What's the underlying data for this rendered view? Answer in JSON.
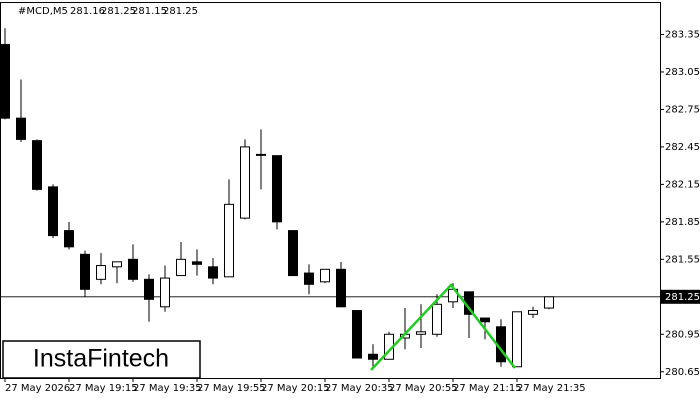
{
  "chart_data": {
    "type": "candlestick",
    "title": "#MCD,M5",
    "header_values": [
      281.16,
      281.25,
      281.15,
      281.25
    ],
    "watermark": "InstaFintech",
    "categories": [
      "27 May 2026",
      null,
      null,
      null,
      "27 May 19:15",
      null,
      null,
      null,
      "27 May 19:35",
      null,
      null,
      null,
      "27 May 19:55",
      null,
      null,
      null,
      "27 May 20:15",
      null,
      null,
      null,
      "27 May 20:35",
      null,
      null,
      null,
      "27 May 20:55",
      null,
      null,
      null,
      "27 May 21:15",
      null,
      null,
      null,
      "27 May 21:35",
      null,
      null
    ],
    "open": [
      283.27,
      282.68,
      282.5,
      282.13,
      281.78,
      281.59,
      281.39,
      281.49,
      281.55,
      281.39,
      281.17,
      281.42,
      281.53,
      281.49,
      281.41,
      281.88,
      282.39,
      282.38,
      281.78,
      281.44,
      281.37,
      281.47,
      281.14,
      280.79,
      280.75,
      280.92,
      280.95,
      280.95,
      281.21,
      281.29,
      281.08,
      281.01,
      280.69,
      281.11,
      281.16
    ],
    "high": [
      283.4,
      282.99,
      282.51,
      282.15,
      281.85,
      281.62,
      281.6,
      281.53,
      281.67,
      281.43,
      281.5,
      281.69,
      281.63,
      281.56,
      282.19,
      282.51,
      282.59,
      282.38,
      281.78,
      281.51,
      281.47,
      281.53,
      281.14,
      280.87,
      280.97,
      281.16,
      281.19,
      281.27,
      281.36,
      281.29,
      281.08,
      281.07,
      281.13,
      281.17,
      281.25
    ],
    "low": [
      282.67,
      282.49,
      282.1,
      281.72,
      281.63,
      281.25,
      281.35,
      281.36,
      281.37,
      281.05,
      281.13,
      281.42,
      281.42,
      281.35,
      281.41,
      281.87,
      282.11,
      281.79,
      281.42,
      281.27,
      281.36,
      281.17,
      280.76,
      280.67,
      280.75,
      280.83,
      280.84,
      280.93,
      281.16,
      280.92,
      280.91,
      280.69,
      280.69,
      281.08,
      281.15
    ],
    "close": [
      282.68,
      282.51,
      282.11,
      281.74,
      281.65,
      281.31,
      281.5,
      281.53,
      281.39,
      281.23,
      281.4,
      281.55,
      281.51,
      281.4,
      281.99,
      282.45,
      282.39,
      281.85,
      281.42,
      281.35,
      281.47,
      281.17,
      280.76,
      280.75,
      280.95,
      280.95,
      280.97,
      281.19,
      281.31,
      281.11,
      281.05,
      280.73,
      281.13,
      281.14,
      281.25
    ],
    "up_color": "#ffffff",
    "down_color": "#000000",
    "wick_color": "#000000",
    "current_price": 281.25,
    "pattern_color": "#22cc22",
    "ylim": [
      280.6,
      283.61
    ],
    "yticks": [
      280.65,
      280.95,
      281.55,
      281.85,
      282.15,
      282.45,
      282.75,
      283.05,
      283.35
    ]
  }
}
